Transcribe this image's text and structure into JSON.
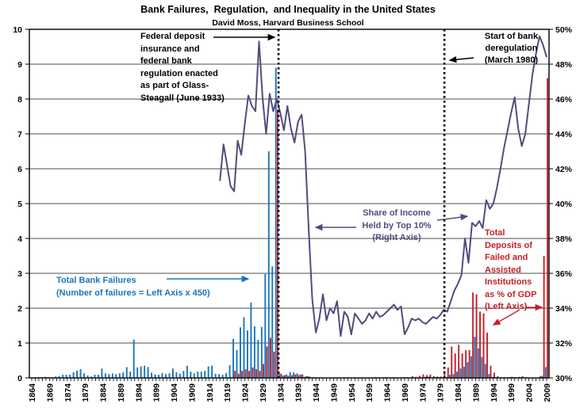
{
  "title": "Bank Failures,  Regulation,  and Inequality in the United States",
  "subtitle": "David Moss, Harvard Business School",
  "annotations": {
    "glass_steagall": [
      "Federal deposit",
      "insurance and",
      "federal bank",
      "regulation enacted",
      "as part of Glass-",
      "Steagall (June 1933)"
    ],
    "deregulation": [
      "Start of bank",
      "deregulation",
      "(March 1980)"
    ],
    "bank_failures": [
      "Total Bank Failures",
      "(Number of failures = Left Axis x 450)"
    ],
    "income_share": [
      "Share of Income",
      "Held by Top 10%",
      "(Right Axis)"
    ],
    "deposits": [
      "Total",
      "Deposits of",
      "Failed and",
      "Assisted",
      "Institutions",
      "as %  of GDP",
      "(Left Axis)"
    ]
  },
  "colors": {
    "failures_bars": "#1B75BC",
    "deposit_bars": "#C2212B",
    "income_line": "#564A7D",
    "gridline": "#4d4d4d",
    "axis": "#000000"
  },
  "chart_data": {
    "type": "bar",
    "x_start_year": 1864,
    "x_end_year": 2009,
    "x_tick_label_interval": 5,
    "x_tick_labels": [
      "1864",
      "1869",
      "1874",
      "1879",
      "1884",
      "1889",
      "1894",
      "1899",
      "1904",
      "1909",
      "1914",
      "1919",
      "1924",
      "1929",
      "1934",
      "1939",
      "1944",
      "1949",
      "1954",
      "1959",
      "1964",
      "1969",
      "1974",
      "1979",
      "1984",
      "1989",
      "1994",
      "1999",
      "2004",
      "2009"
    ],
    "left_axis": {
      "min": 0,
      "max": 10,
      "step": 1
    },
    "right_axis": {
      "min": 30,
      "max": 50,
      "step": 2,
      "suffix": "%"
    },
    "grid": true,
    "events": [
      {
        "label": "Glass-Steagall enacted (June 1933)",
        "year": 1933.5
      },
      {
        "label": "Start of bank deregulation (March 1980)",
        "year": 1980.2
      }
    ],
    "series": [
      {
        "name": "Total Bank Failures (Number of failures = Left Axis x 450)",
        "type": "bar",
        "axis": "left",
        "color": "#1B75BC",
        "values": [
          0,
          0.02,
          0.02,
          0.02,
          0.03,
          0.02,
          0.01,
          0.04,
          0.05,
          0.09,
          0.09,
          0.09,
          0.16,
          0.21,
          0.25,
          0.13,
          0.07,
          0.04,
          0.09,
          0.09,
          0.27,
          0.13,
          0.11,
          0.13,
          0.11,
          0.13,
          0.16,
          0.31,
          0.18,
          1.1,
          0.3,
          0.33,
          0.35,
          0.31,
          0.15,
          0.1,
          0.09,
          0.14,
          0.11,
          0.13,
          0.27,
          0.16,
          0.12,
          0.2,
          0.35,
          0.18,
          0.13,
          0.18,
          0.18,
          0.2,
          0.33,
          0.35,
          0.12,
          0.11,
          0.09,
          0.14,
          0.37,
          1.12,
          0.8,
          1.45,
          1.74,
          1.36,
          2.16,
          1.48,
          1.09,
          1.46,
          2.98,
          6.5,
          3.2,
          8.9,
          0.13,
          0.07,
          0.1,
          0.17,
          0.16,
          0.13,
          0.1,
          0.03,
          0.05,
          0.01,
          0.01,
          0,
          0,
          0.01,
          0,
          0.01,
          0,
          0.01,
          0.01,
          0.01,
          0.01,
          0.01,
          0.01,
          0.01,
          0.01,
          0.01,
          0,
          0.02,
          0,
          0,
          0.02,
          0.01,
          0.02,
          0.01,
          0,
          0.02,
          0.02,
          0.01,
          0,
          0.01,
          0.01,
          0.03,
          0.04,
          0.01,
          0.02,
          0.02,
          0.02,
          0.02,
          0.09,
          0.11,
          0.18,
          0.27,
          0.32,
          0.45,
          0.62,
          1.18,
          0.85,
          0.6,
          0.4,
          0.11,
          0.03,
          0.02,
          0.01,
          0,
          0.01,
          0.02,
          0.02,
          0.01,
          0.02,
          0.01,
          0.01,
          0,
          0,
          0.01,
          0.06,
          0.31
        ]
      },
      {
        "name": "Total Deposits of Failed and Assisted Institutions as % of GDP (Left Axis)",
        "type": "bar",
        "axis": "left",
        "color": "#C2212B",
        "values": [
          null,
          null,
          null,
          null,
          null,
          null,
          null,
          null,
          null,
          null,
          null,
          null,
          null,
          null,
          null,
          null,
          null,
          null,
          null,
          null,
          null,
          null,
          null,
          null,
          null,
          null,
          null,
          null,
          null,
          null,
          null,
          null,
          null,
          null,
          null,
          null,
          null,
          null,
          null,
          null,
          null,
          null,
          null,
          null,
          null,
          null,
          null,
          null,
          null,
          null,
          null,
          null,
          null,
          null,
          null,
          null,
          null,
          0.2,
          0.12,
          0.2,
          0.25,
          0.2,
          0.3,
          0.25,
          0.2,
          0.4,
          0.9,
          1.15,
          0.75,
          7.7,
          0.12,
          0.08,
          0.06,
          0.08,
          0.1,
          0.08,
          0.1,
          0.05,
          0.04,
          0.02,
          0.01,
          0.01,
          0.01,
          0.01,
          0.01,
          0.01,
          0.01,
          0.01,
          0.01,
          0.01,
          0.01,
          0.01,
          0.01,
          0.01,
          0.01,
          0.01,
          0.01,
          0.01,
          0.01,
          0.01,
          0.01,
          0.01,
          0.01,
          0.01,
          0.01,
          0.01,
          0.01,
          0.05,
          0.03,
          0.06,
          0.1,
          0.08,
          0.1,
          0.05,
          0.04,
          0.04,
          0.2,
          0.3,
          0.9,
          0.7,
          0.95,
          0.7,
          0.8,
          0.8,
          2.45,
          2.4,
          1.9,
          1.85,
          1.3,
          0.35,
          0.15,
          0.05,
          0.02,
          0.02,
          0.02,
          0.03,
          0.02,
          0.03,
          0.05,
          0.02,
          0.01,
          0,
          0,
          0.05,
          3.5,
          8.6
        ]
      },
      {
        "name": "Share of Income Held by Top 10% (Right Axis)",
        "type": "line",
        "axis": "right",
        "color": "#564A7D",
        "values": [
          null,
          null,
          null,
          null,
          null,
          null,
          null,
          null,
          null,
          null,
          null,
          null,
          null,
          null,
          null,
          null,
          null,
          null,
          null,
          null,
          null,
          null,
          null,
          null,
          null,
          null,
          null,
          null,
          null,
          null,
          null,
          null,
          null,
          null,
          null,
          null,
          null,
          null,
          null,
          null,
          null,
          null,
          null,
          null,
          null,
          null,
          null,
          null,
          null,
          null,
          null,
          null,
          null,
          41.3,
          43.4,
          42.2,
          41.0,
          40.7,
          43.6,
          42.8,
          44.6,
          46.2,
          45.6,
          45.3,
          49.3,
          46.1,
          44.0,
          46.3,
          45.3,
          46.0,
          45.2,
          44.2,
          45.6,
          44.3,
          43.5,
          44.7,
          45.1,
          43.0,
          38.5,
          34.5,
          32.6,
          33.4,
          34.8,
          33.3,
          34.0,
          33.7,
          34.4,
          32.4,
          33.8,
          33.5,
          32.5,
          33.7,
          33.4,
          33.1,
          33.3,
          33.7,
          33.4,
          33.8,
          33.5,
          33.6,
          33.8,
          34.0,
          34.2,
          33.9,
          34.1,
          32.5,
          32.9,
          33.4,
          33.3,
          33.4,
          33.2,
          33.1,
          33.3,
          33.5,
          33.4,
          33.6,
          33.9,
          33.8,
          34.4,
          35.0,
          35.4,
          35.9,
          38.0,
          36.6,
          38.9,
          38.7,
          39.0,
          38.6,
          40.2,
          39.7,
          40.0,
          40.9,
          42.0,
          43.2,
          44.2,
          45.2,
          46.1,
          44.3,
          43.3,
          44.0,
          45.7,
          47.4,
          48.6,
          49.6,
          49.1,
          48.4
        ]
      }
    ]
  }
}
